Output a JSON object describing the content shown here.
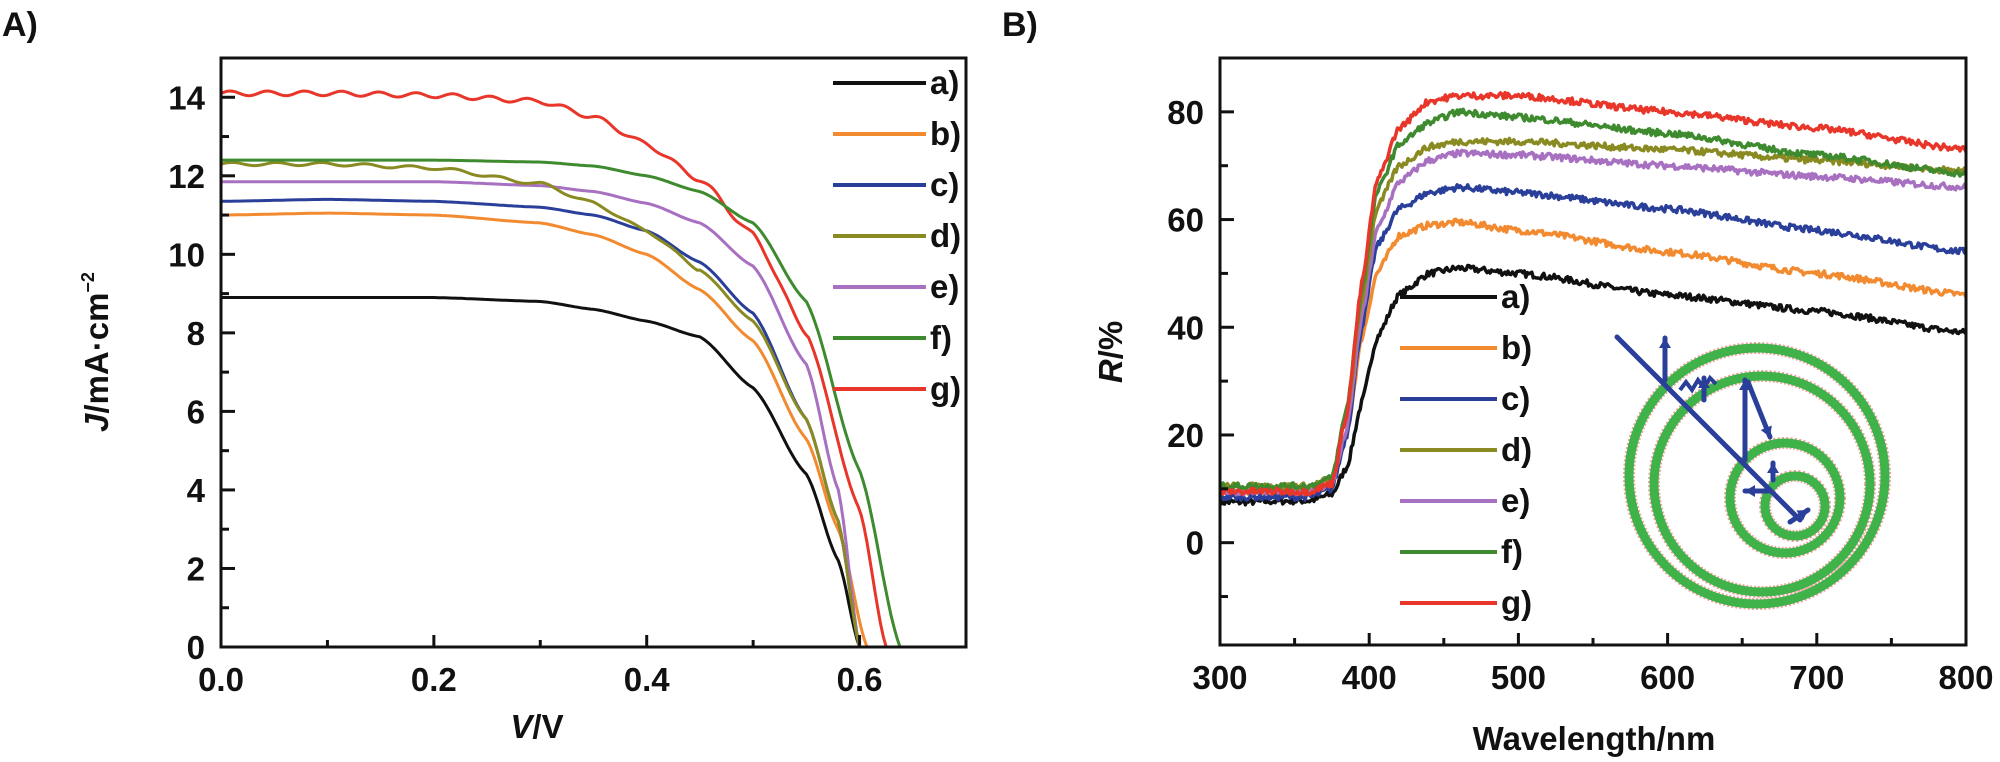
{
  "chart_data": [
    {
      "panel": "A)",
      "type": "line",
      "title": "",
      "xlabel_italic": "V",
      "xlabel_unit": "/V",
      "ylabel_italic": "J",
      "ylabel_unit": "/mA·cm",
      "ylabel_sup": "−2",
      "xlim": [
        0.0,
        0.7
      ],
      "ylim": [
        0,
        15
      ],
      "xticks": [
        0.0,
        0.2,
        0.4,
        0.6
      ],
      "xtick_labels": [
        "0.0",
        "0.2",
        "0.4",
        "0.6"
      ],
      "xminor": [
        0.1,
        0.3,
        0.5
      ],
      "yticks": [
        0,
        2,
        4,
        6,
        8,
        10,
        12,
        14
      ],
      "ytick_labels": [
        "0",
        "2",
        "4",
        "6",
        "8",
        "10",
        "12",
        "14"
      ],
      "yminor": [
        1,
        3,
        5,
        7,
        9,
        11,
        13
      ],
      "grid": false,
      "legend_position": "top-right",
      "series": [
        {
          "name": "a)",
          "color": "#111111",
          "x": [
            0,
            0.1,
            0.2,
            0.3,
            0.35,
            0.4,
            0.45,
            0.5,
            0.55,
            0.58,
            0.6
          ],
          "y": [
            8.9,
            8.9,
            8.9,
            8.8,
            8.6,
            8.3,
            7.9,
            6.6,
            4.4,
            2.2,
            0
          ]
        },
        {
          "name": "b)",
          "color": "#f28a30",
          "x": [
            0,
            0.1,
            0.2,
            0.3,
            0.35,
            0.4,
            0.45,
            0.5,
            0.55,
            0.58,
            0.607
          ],
          "y": [
            11.0,
            11.05,
            11.0,
            10.8,
            10.5,
            10.0,
            9.1,
            7.8,
            5.3,
            3.0,
            0
          ]
        },
        {
          "name": "c)",
          "color": "#2a3f9a",
          "x": [
            0,
            0.1,
            0.2,
            0.3,
            0.35,
            0.4,
            0.45,
            0.5,
            0.55,
            0.58,
            0.6
          ],
          "y": [
            11.35,
            11.4,
            11.35,
            11.2,
            11.0,
            10.6,
            9.8,
            8.5,
            5.8,
            3.2,
            0
          ]
        },
        {
          "name": "d)",
          "color": "#8a8a22",
          "x": [
            0,
            0.1,
            0.2,
            0.3,
            0.35,
            0.4,
            0.45,
            0.5,
            0.55,
            0.58,
            0.6
          ],
          "y": [
            12.3,
            12.3,
            12.2,
            11.8,
            11.3,
            10.6,
            9.6,
            8.3,
            5.8,
            3.2,
            0
          ]
        },
        {
          "name": "e)",
          "color": "#a870c0",
          "x": [
            0,
            0.1,
            0.2,
            0.3,
            0.35,
            0.4,
            0.45,
            0.5,
            0.55,
            0.58,
            0.6
          ],
          "y": [
            11.85,
            11.85,
            11.85,
            11.75,
            11.6,
            11.3,
            10.8,
            9.7,
            7.2,
            4.0,
            0
          ]
        },
        {
          "name": "f)",
          "color": "#3e8a2e",
          "x": [
            0,
            0.1,
            0.2,
            0.3,
            0.35,
            0.4,
            0.45,
            0.5,
            0.55,
            0.6,
            0.638
          ],
          "y": [
            12.4,
            12.4,
            12.4,
            12.35,
            12.25,
            12.0,
            11.6,
            10.8,
            8.8,
            4.5,
            0
          ]
        },
        {
          "name": "g)",
          "color": "#e8362a",
          "x": [
            0,
            0.1,
            0.2,
            0.3,
            0.35,
            0.4,
            0.45,
            0.5,
            0.55,
            0.6,
            0.625
          ],
          "y": [
            14.1,
            14.1,
            14.05,
            13.9,
            13.5,
            12.8,
            11.9,
            10.5,
            8.0,
            3.5,
            0
          ]
        }
      ]
    },
    {
      "panel": "B)",
      "type": "line",
      "title": "",
      "xlabel": "Wavelength/nm",
      "ylabel_italic": "R",
      "ylabel_unit": "/%",
      "xlim": [
        300,
        800
      ],
      "ylim": [
        -19,
        90
      ],
      "xticks": [
        300,
        400,
        500,
        600,
        700,
        800
      ],
      "xtick_labels": [
        "300",
        "400",
        "500",
        "600",
        "700",
        "800"
      ],
      "xminor": [
        350,
        450,
        550,
        650,
        750
      ],
      "yticks": [
        0,
        20,
        40,
        60,
        80
      ],
      "ytick_labels": [
        "0",
        "20",
        "40",
        "60",
        "80"
      ],
      "yminor": [
        -10,
        10,
        30,
        50,
        70
      ],
      "grid": false,
      "legend_position": "center-left",
      "inset": "spiral-light-trapping-diagram",
      "series": [
        {
          "name": "a)",
          "color": "#111111",
          "x": [
            300,
            360,
            375,
            385,
            395,
            405,
            420,
            440,
            460,
            500,
            600,
            700,
            800
          ],
          "y": [
            7.5,
            7.8,
            9,
            14,
            26,
            38,
            46,
            50,
            51,
            50,
            46,
            43,
            39
          ]
        },
        {
          "name": "b)",
          "color": "#f28a30",
          "x": [
            300,
            360,
            375,
            385,
            395,
            405,
            420,
            440,
            460,
            500,
            600,
            700,
            800
          ],
          "y": [
            9.5,
            9.5,
            11,
            20,
            38,
            50,
            57,
            59,
            59.5,
            58,
            54,
            50,
            46
          ]
        },
        {
          "name": "c)",
          "color": "#2a3f9a",
          "x": [
            300,
            360,
            375,
            385,
            395,
            405,
            420,
            440,
            460,
            500,
            600,
            700,
            800
          ],
          "y": [
            8.5,
            8.5,
            10,
            20,
            40,
            55,
            62,
            65,
            66,
            65,
            62,
            58,
            54
          ]
        },
        {
          "name": "d)",
          "color": "#8a8a22",
          "x": [
            300,
            360,
            375,
            385,
            395,
            405,
            420,
            440,
            460,
            500,
            600,
            700,
            800
          ],
          "y": [
            10.5,
            10.5,
            12,
            24,
            45,
            62,
            70,
            73.5,
            74.5,
            74.5,
            73,
            71,
            69
          ]
        },
        {
          "name": "e)",
          "color": "#a870c0",
          "x": [
            300,
            360,
            375,
            385,
            395,
            405,
            420,
            440,
            460,
            500,
            600,
            700,
            800
          ],
          "y": [
            9.5,
            9.5,
            11,
            21,
            42,
            58,
            67,
            71,
            72.3,
            72,
            70,
            68,
            66
          ]
        },
        {
          "name": "f)",
          "color": "#3e8a2e",
          "x": [
            300,
            360,
            375,
            385,
            395,
            405,
            420,
            440,
            460,
            500,
            600,
            700,
            800
          ],
          "y": [
            10.5,
            10.5,
            12,
            25,
            47,
            65,
            74,
            78,
            80,
            79,
            76,
            72,
            68.5
          ]
        },
        {
          "name": "g)",
          "color": "#e8362a",
          "x": [
            300,
            360,
            375,
            385,
            395,
            405,
            420,
            440,
            460,
            500,
            600,
            700,
            800
          ],
          "y": [
            9.5,
            9.5,
            11,
            24,
            48,
            67,
            77,
            82,
            83,
            83,
            80,
            77,
            73
          ]
        }
      ]
    }
  ]
}
